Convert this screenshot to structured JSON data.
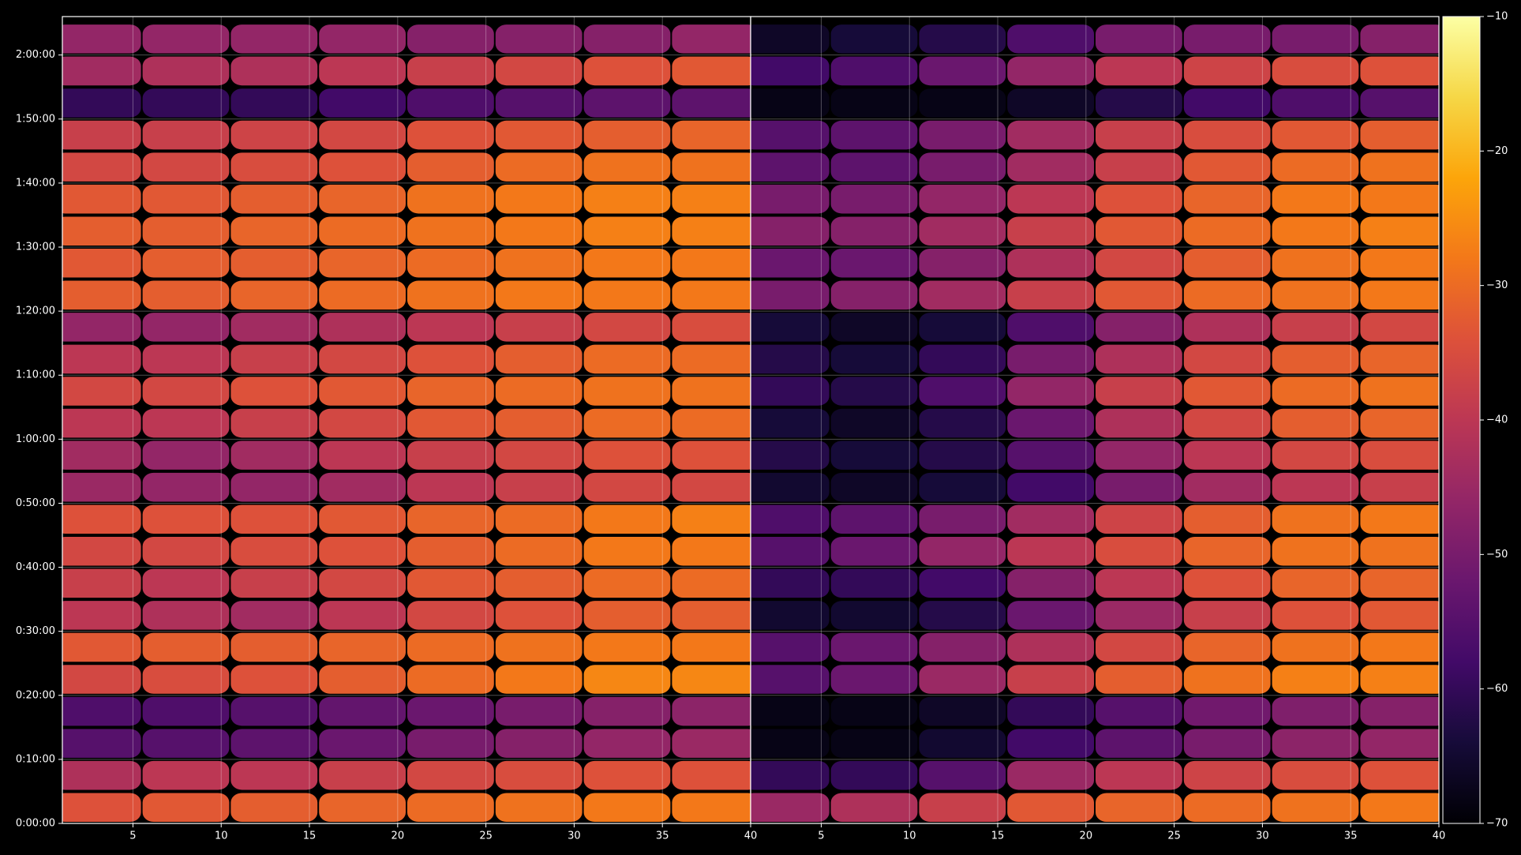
{
  "chart_data": [
    {
      "type": "heatmap",
      "x": [
        3,
        8,
        13,
        18,
        23,
        28,
        33,
        38
      ],
      "y": [
        150,
        450,
        750,
        1050,
        1350,
        1650,
        1950,
        2250,
        2550,
        2850,
        3150,
        3450,
        3750,
        4050,
        4350,
        4650,
        4950,
        5250,
        5550,
        5850,
        6150,
        6450,
        6750,
        7050,
        7350
      ],
      "z": [
        [
          -34,
          -33,
          -32,
          -31,
          -30,
          -29,
          -28,
          -28
        ],
        [
          -42,
          -40,
          -40,
          -38,
          -36,
          -35,
          -34,
          -34
        ],
        [
          -55,
          -55,
          -54,
          -52,
          -50,
          -48,
          -46,
          -45
        ],
        [
          -56,
          -56,
          -55,
          -53,
          -52,
          -50,
          -48,
          -47
        ],
        [
          -36,
          -35,
          -34,
          -32,
          -30,
          -28,
          -26,
          -26
        ],
        [
          -33,
          -32,
          -32,
          -31,
          -30,
          -29,
          -28,
          -28
        ],
        [
          -40,
          -42,
          -44,
          -40,
          -36,
          -34,
          -32,
          -32
        ],
        [
          -38,
          -40,
          -38,
          -36,
          -33,
          -32,
          -30,
          -30
        ],
        [
          -36,
          -36,
          -35,
          -34,
          -32,
          -30,
          -28,
          -28
        ],
        [
          -34,
          -34,
          -34,
          -33,
          -31,
          -30,
          -28,
          -27
        ],
        [
          -45,
          -46,
          -46,
          -44,
          -40,
          -38,
          -36,
          -36
        ],
        [
          -44,
          -46,
          -44,
          -40,
          -38,
          -36,
          -34,
          -34
        ],
        [
          -40,
          -40,
          -38,
          -36,
          -33,
          -32,
          -30,
          -30
        ],
        [
          -36,
          -36,
          -34,
          -33,
          -31,
          -30,
          -29,
          -29
        ],
        [
          -40,
          -40,
          -38,
          -36,
          -34,
          -32,
          -30,
          -30
        ],
        [
          -46,
          -46,
          -44,
          -42,
          -40,
          -38,
          -36,
          -35
        ],
        [
          -32,
          -32,
          -31,
          -30,
          -29,
          -28,
          -28,
          -28
        ],
        [
          -33,
          -32,
          -32,
          -31,
          -30,
          -29,
          -28,
          -28
        ],
        [
          -32,
          -32,
          -31,
          -30,
          -29,
          -28,
          -27,
          -27
        ],
        [
          -33,
          -33,
          -32,
          -31,
          -29,
          -28,
          -27,
          -27
        ],
        [
          -36,
          -36,
          -35,
          -34,
          -32,
          -30,
          -29,
          -29
        ],
        [
          -38,
          -38,
          -37,
          -36,
          -34,
          -33,
          -32,
          -31
        ],
        [
          -60,
          -60,
          -60,
          -58,
          -56,
          -55,
          -54,
          -54
        ],
        [
          -44,
          -42,
          -42,
          -40,
          -38,
          -36,
          -34,
          -33
        ],
        [
          -46,
          -46,
          -46,
          -46,
          -48,
          -48,
          -48,
          -46
        ]
      ],
      "xlim": [
        1,
        40
      ],
      "xticks": [
        5,
        10,
        15,
        20,
        25,
        30,
        35,
        40
      ],
      "ylim": [
        0,
        7560
      ],
      "yticks": [
        {
          "value": 0,
          "label": "0:00:00"
        },
        {
          "value": 600,
          "label": "0:10:00"
        },
        {
          "value": 1200,
          "label": "0:20:00"
        },
        {
          "value": 1800,
          "label": "0:30:00"
        },
        {
          "value": 2400,
          "label": "0:40:00"
        },
        {
          "value": 3000,
          "label": "0:50:00"
        },
        {
          "value": 3600,
          "label": "1:00:00"
        },
        {
          "value": 4200,
          "label": "1:10:00"
        },
        {
          "value": 4800,
          "label": "1:20:00"
        },
        {
          "value": 5400,
          "label": "1:30:00"
        },
        {
          "value": 6000,
          "label": "1:40:00"
        },
        {
          "value": 6600,
          "label": "1:50:00"
        },
        {
          "value": 7200,
          "label": "2:00:00"
        }
      ],
      "grid": true,
      "colorbar": {
        "lim": [
          -70,
          -10
        ],
        "colormap": "inferno",
        "ticks": [
          {
            "value": -10,
            "label": "−10"
          },
          {
            "value": -20,
            "label": "−20"
          },
          {
            "value": -30,
            "label": "−30"
          },
          {
            "value": -40,
            "label": "−40"
          },
          {
            "value": -50,
            "label": "−50"
          },
          {
            "value": -60,
            "label": "−60"
          },
          {
            "value": -70,
            "label": "−70"
          }
        ]
      }
    },
    {
      "type": "heatmap",
      "x": [
        3,
        8,
        13,
        18,
        23,
        28,
        33,
        38
      ],
      "y": [
        150,
        450,
        750,
        1050,
        1350,
        1650,
        1950,
        2250,
        2550,
        2850,
        3150,
        3450,
        3750,
        4050,
        4350,
        4650,
        4950,
        5250,
        5550,
        5850,
        6150,
        6450,
        6750,
        7050,
        7350
      ],
      "z": [
        [
          -45,
          -42,
          -38,
          -33,
          -31,
          -30,
          -29,
          -28
        ],
        [
          -60,
          -60,
          -55,
          -45,
          -40,
          -37,
          -35,
          -34
        ],
        [
          -68,
          -68,
          -65,
          -58,
          -54,
          -50,
          -47,
          -46
        ],
        [
          -68,
          -68,
          -66,
          -60,
          -55,
          -51,
          -49,
          -48
        ],
        [
          -55,
          -52,
          -45,
          -38,
          -32,
          -29,
          -27,
          -27
        ],
        [
          -55,
          -52,
          -48,
          -42,
          -36,
          -31,
          -29,
          -28
        ],
        [
          -65,
          -65,
          -62,
          -52,
          -45,
          -38,
          -34,
          -33
        ],
        [
          -60,
          -60,
          -58,
          -48,
          -40,
          -34,
          -31,
          -31
        ],
        [
          -55,
          -52,
          -46,
          -40,
          -35,
          -31,
          -29,
          -29
        ],
        [
          -56,
          -54,
          -50,
          -44,
          -37,
          -32,
          -29,
          -28
        ],
        [
          -65,
          -66,
          -64,
          -58,
          -50,
          -44,
          -40,
          -38
        ],
        [
          -62,
          -64,
          -62,
          -55,
          -46,
          -40,
          -36,
          -35
        ],
        [
          -64,
          -66,
          -62,
          -52,
          -42,
          -36,
          -32,
          -31
        ],
        [
          -60,
          -62,
          -56,
          -46,
          -38,
          -33,
          -30,
          -29
        ],
        [
          -62,
          -64,
          -60,
          -50,
          -42,
          -36,
          -32,
          -31
        ],
        [
          -64,
          -66,
          -64,
          -56,
          -48,
          -42,
          -38,
          -36
        ],
        [
          -50,
          -48,
          -44,
          -38,
          -33,
          -30,
          -29,
          -28
        ],
        [
          -52,
          -52,
          -48,
          -42,
          -36,
          -32,
          -29,
          -28
        ],
        [
          -48,
          -48,
          -44,
          -38,
          -33,
          -30,
          -28,
          -27
        ],
        [
          -50,
          -50,
          -46,
          -40,
          -34,
          -31,
          -28,
          -28
        ],
        [
          -54,
          -54,
          -50,
          -44,
          -38,
          -33,
          -30,
          -29
        ],
        [
          -55,
          -54,
          -50,
          -44,
          -38,
          -35,
          -33,
          -32
        ],
        [
          -68,
          -68,
          -68,
          -66,
          -62,
          -58,
          -56,
          -55
        ],
        [
          -58,
          -56,
          -52,
          -46,
          -40,
          -37,
          -35,
          -34
        ],
        [
          -66,
          -64,
          -62,
          -56,
          -50,
          -50,
          -50,
          -48
        ]
      ],
      "xlim": [
        1,
        40
      ],
      "xticks": [
        5,
        10,
        15,
        20,
        25,
        30,
        35,
        40
      ],
      "ylim": [
        0,
        7560
      ],
      "yticks": [
        0,
        600,
        1200,
        1800,
        2400,
        3000,
        3600,
        4200,
        4800,
        5400,
        6000,
        6600,
        7200
      ],
      "grid": true
    }
  ]
}
